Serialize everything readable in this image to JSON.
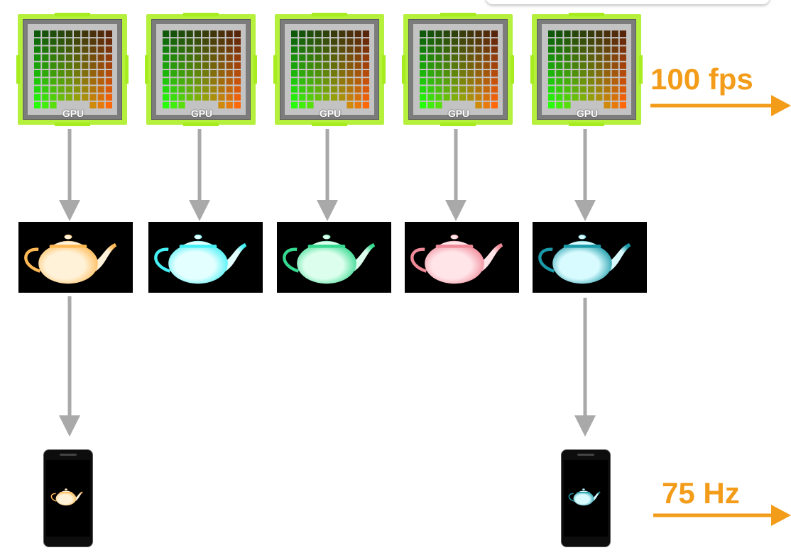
{
  "gpu_row": {
    "label": "GPU",
    "count": 5,
    "cell_colors_note": "green-to-red gradient grid"
  },
  "frames": [
    {
      "tint": "#ffb955",
      "highlight": "#fff2d8"
    },
    {
      "tint": "#45f0f5",
      "highlight": "#e4ffff"
    },
    {
      "tint": "#35d98f",
      "highlight": "#dbffec"
    },
    {
      "tint": "#f08a98",
      "highlight": "#ffe4e8"
    },
    {
      "tint": "#1a9aa8",
      "highlight": "#d8fbff"
    }
  ],
  "displays": [
    {
      "tint": "#ffb955",
      "highlight": "#fff2d8"
    },
    {
      "tint": "#1a9aa8",
      "highlight": "#d8fbff"
    }
  ],
  "rates": {
    "render": "100 fps",
    "display": "75 Hz"
  },
  "colors": {
    "accent_orange": "#f39c19",
    "arrow_gray": "#a9a9a9",
    "gpu_board": "#b4f03c"
  }
}
